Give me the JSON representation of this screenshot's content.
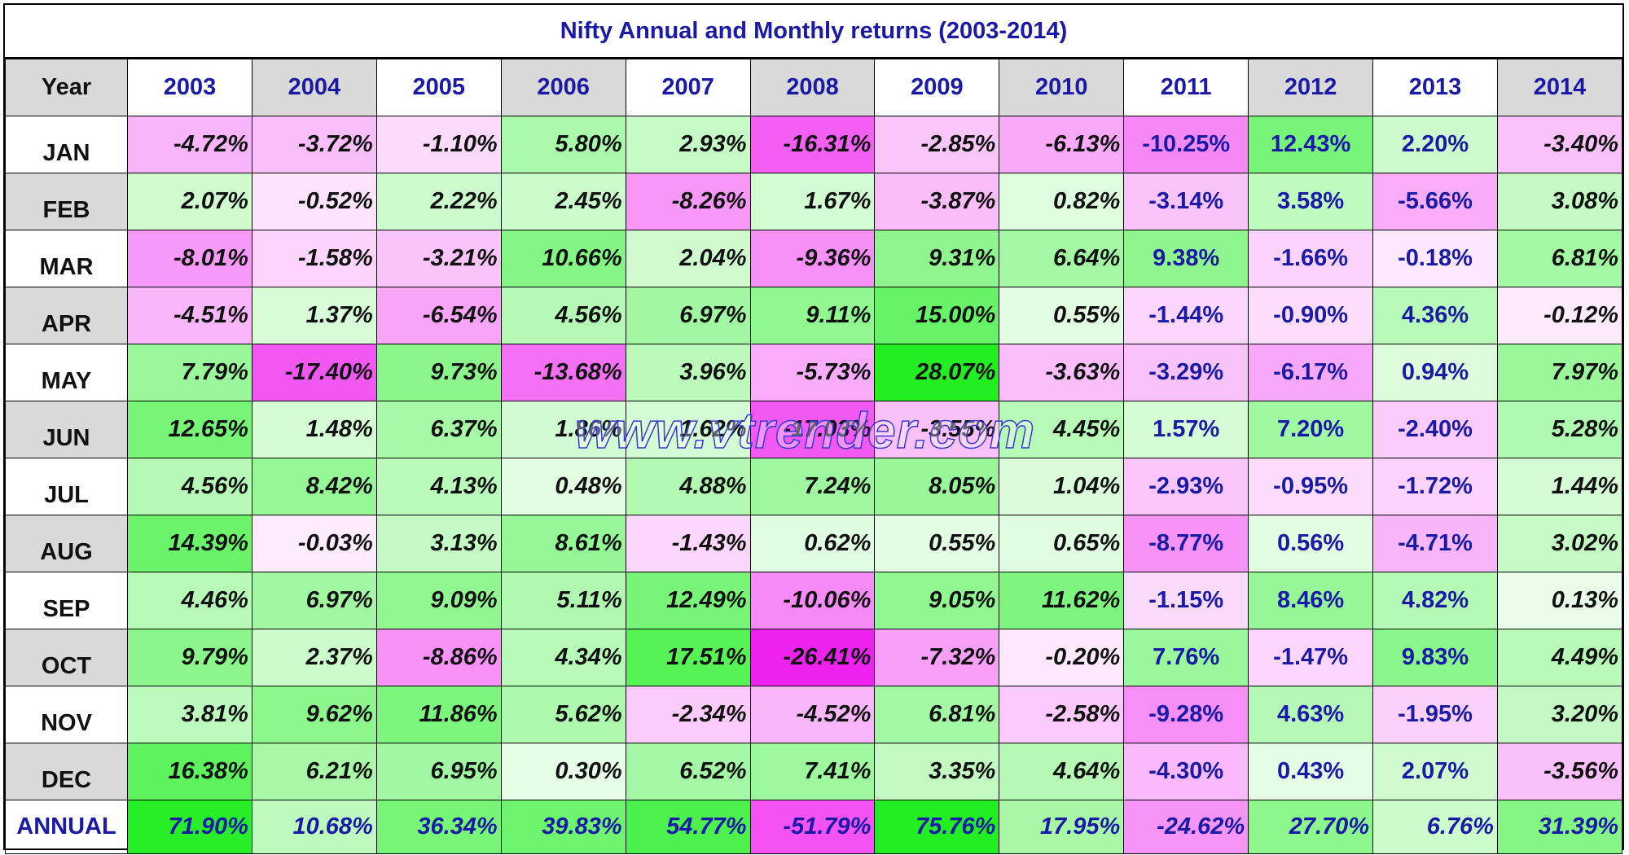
{
  "chart_data": {
    "type": "table",
    "title": "Nifty Annual and Monthly returns (2003-2014)",
    "corner_label": "Year",
    "years": [
      "2003",
      "2004",
      "2005",
      "2006",
      "2007",
      "2008",
      "2009",
      "2010",
      "2011",
      "2012",
      "2013",
      "2014"
    ],
    "rows": [
      {
        "label": "JAN",
        "values": [
          "-4.72%",
          "-3.72%",
          "-1.10%",
          "5.80%",
          "2.93%",
          "-16.31%",
          "-2.85%",
          "-6.13%",
          "-10.25%",
          "12.43%",
          "2.20%",
          "-3.40%"
        ]
      },
      {
        "label": "FEB",
        "values": [
          "2.07%",
          "-0.52%",
          "2.22%",
          "2.45%",
          "-8.26%",
          "1.67%",
          "-3.87%",
          "0.82%",
          "-3.14%",
          "3.58%",
          "-5.66%",
          "3.08%"
        ]
      },
      {
        "label": "MAR",
        "values": [
          "-8.01%",
          "-1.58%",
          "-3.21%",
          "10.66%",
          "2.04%",
          "-9.36%",
          "9.31%",
          "6.64%",
          "9.38%",
          "-1.66%",
          "-0.18%",
          "6.81%"
        ]
      },
      {
        "label": "APR",
        "values": [
          "-4.51%",
          "1.37%",
          "-6.54%",
          "4.56%",
          "6.97%",
          "9.11%",
          "15.00%",
          "0.55%",
          "-1.44%",
          "-0.90%",
          "4.36%",
          "-0.12%"
        ]
      },
      {
        "label": "MAY",
        "values": [
          "7.79%",
          "-17.40%",
          "9.73%",
          "-13.68%",
          "3.96%",
          "-5.73%",
          "28.07%",
          "-3.63%",
          "-3.29%",
          "-6.17%",
          "0.94%",
          "7.97%"
        ]
      },
      {
        "label": "JUN",
        "values": [
          "12.65%",
          "1.48%",
          "6.37%",
          "1.86%",
          "1.62%",
          "-17.03%",
          "-3.55%",
          "4.45%",
          "1.57%",
          "7.20%",
          "-2.40%",
          "5.28%"
        ]
      },
      {
        "label": "JUL",
        "values": [
          "4.56%",
          "8.42%",
          "4.13%",
          "0.48%",
          "4.88%",
          "7.24%",
          "8.05%",
          "1.04%",
          "-2.93%",
          "-0.95%",
          "-1.72%",
          "1.44%"
        ]
      },
      {
        "label": "AUG",
        "values": [
          "14.39%",
          "-0.03%",
          "3.13%",
          "8.61%",
          "-1.43%",
          "0.62%",
          "0.55%",
          "0.65%",
          "-8.77%",
          "0.56%",
          "-4.71%",
          "3.02%"
        ]
      },
      {
        "label": "SEP",
        "values": [
          "4.46%",
          "6.97%",
          "9.09%",
          "5.11%",
          "12.49%",
          "-10.06%",
          "9.05%",
          "11.62%",
          "-1.15%",
          "8.46%",
          "4.82%",
          "0.13%"
        ]
      },
      {
        "label": "OCT",
        "values": [
          "9.79%",
          "2.37%",
          "-8.86%",
          "4.34%",
          "17.51%",
          "-26.41%",
          "-7.32%",
          "-0.20%",
          "7.76%",
          "-1.47%",
          "9.83%",
          "4.49%"
        ]
      },
      {
        "label": "NOV",
        "values": [
          "3.81%",
          "9.62%",
          "11.86%",
          "5.62%",
          "-2.34%",
          "-4.52%",
          "6.81%",
          "-2.58%",
          "-9.28%",
          "4.63%",
          "-1.95%",
          "3.20%"
        ]
      },
      {
        "label": "DEC",
        "values": [
          "16.38%",
          "6.21%",
          "6.95%",
          "0.30%",
          "6.52%",
          "7.41%",
          "3.35%",
          "4.64%",
          "-4.30%",
          "0.43%",
          "2.07%",
          "-3.56%"
        ]
      }
    ],
    "annual": {
      "label": "ANNUAL",
      "values": [
        "71.90%",
        "10.68%",
        "36.34%",
        "39.83%",
        "54.77%",
        "-51.79%",
        "75.76%",
        "17.95%",
        "-24.62%",
        "27.70%",
        "6.76%",
        "31.39%"
      ]
    },
    "colors": {
      "positive": "#22ee22",
      "negative": "#ee22ee",
      "header_alt_bg": "#d9d9d9",
      "header_text": "#1a1aa6"
    }
  },
  "watermark": "www.vtrender.com"
}
